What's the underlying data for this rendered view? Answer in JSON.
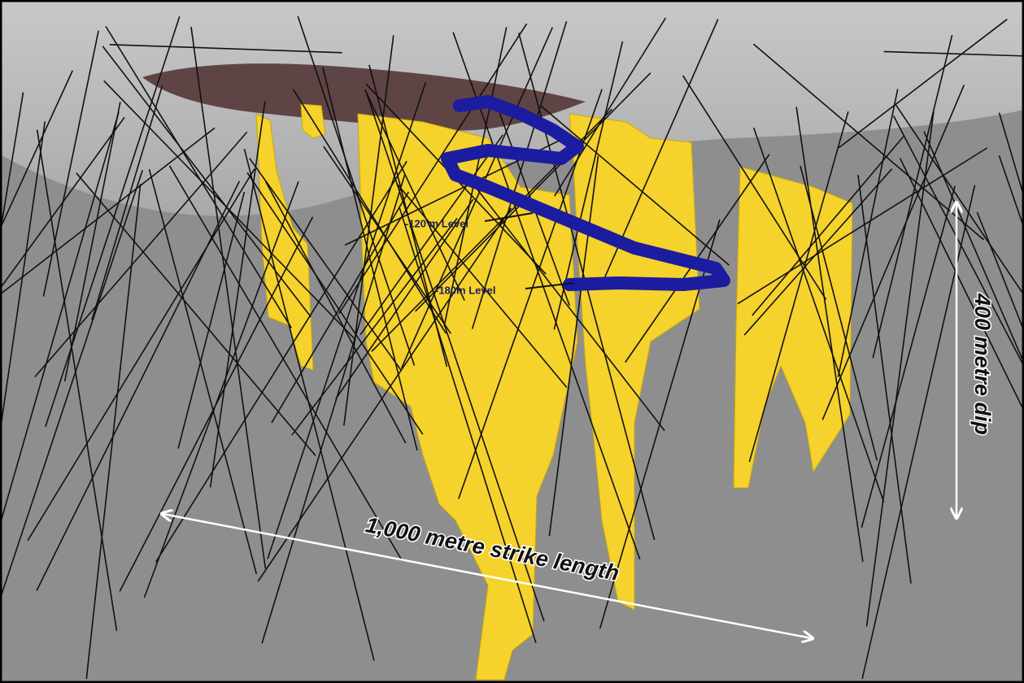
{
  "annotations": {
    "level_120": "-120 m Level",
    "level_180": "-180m Level",
    "dip": "400 metre dip",
    "strike": "1,000 metre strike length"
  }
}
